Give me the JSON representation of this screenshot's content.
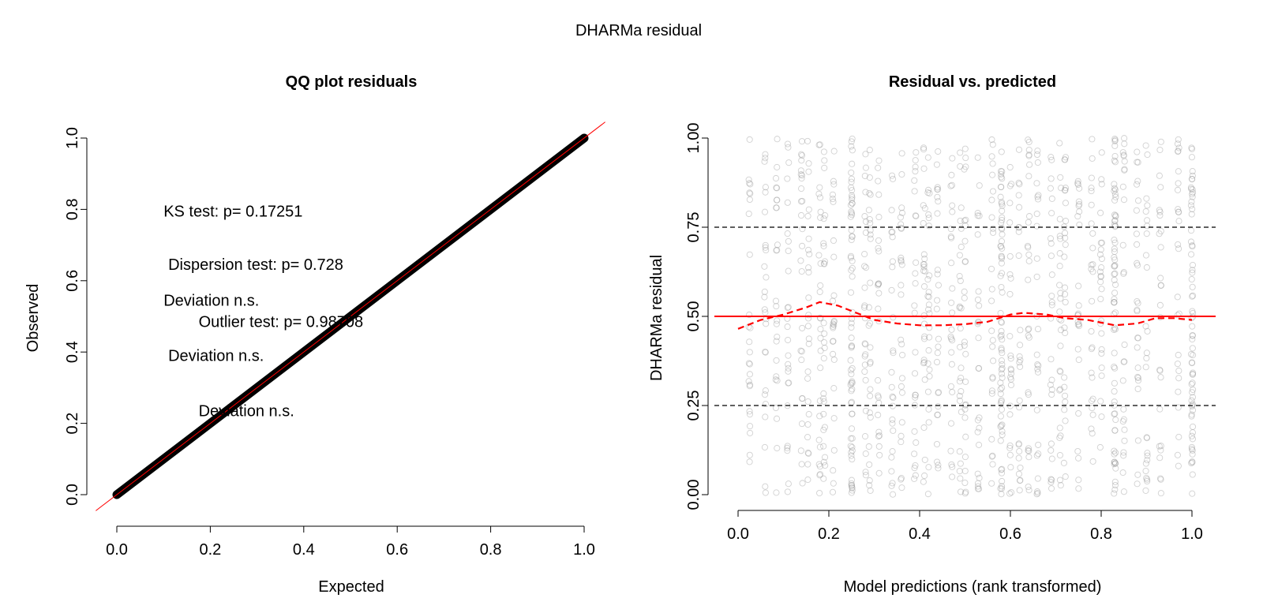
{
  "figure": {
    "title": "DHARMa residual"
  },
  "chart_data": [
    {
      "type": "scatter",
      "title": "QQ plot residuals",
      "xlabel": "Expected",
      "ylabel": "Observed",
      "xlim": [
        0,
        1
      ],
      "ylim": [
        0,
        1
      ],
      "xticks": [
        "0.0",
        "0.2",
        "0.4",
        "0.6",
        "0.8",
        "1.0"
      ],
      "yticks": [
        "0.0",
        "0.2",
        "0.4",
        "0.6",
        "0.8",
        "1.0"
      ],
      "series": [
        {
          "x": [
            0,
            1
          ],
          "y": [
            0,
            1
          ]
        }
      ],
      "reference_line": {
        "slope": 1,
        "intercept": 0,
        "color": "#ff0000"
      },
      "annotations": [
        {
          "text": "KS test: p= 0.17251",
          "x": 0.1,
          "y": 0.78
        },
        {
          "text": "Dispersion test: p= 0.728",
          "x": 0.11,
          "y": 0.63
        },
        {
          "text": "Deviation  n.s.",
          "x": 0.1,
          "y": 0.53
        },
        {
          "text": "Outlier test: p= 0.98708",
          "x": 0.175,
          "y": 0.47
        },
        {
          "text": "Deviation  n.s.",
          "x": 0.11,
          "y": 0.375
        },
        {
          "text": "Deviation  n.s.",
          "x": 0.175,
          "y": 0.22
        }
      ],
      "colors": {
        "points": "#000000",
        "line": "#ff0000"
      },
      "grid": false
    },
    {
      "type": "scatter",
      "title": "Residual vs. predicted",
      "xlabel": "Model predictions (rank transformed)",
      "ylabel": "DHARMa residual",
      "xlim": [
        0,
        1
      ],
      "ylim": [
        0,
        1
      ],
      "xticks": [
        "0.0",
        "0.2",
        "0.4",
        "0.6",
        "0.8",
        "1.0"
      ],
      "yticks": [
        "0.00",
        "0.25",
        "0.50",
        "0.75",
        "1.00"
      ],
      "x_columns": [
        0.025,
        0.06,
        0.085,
        0.11,
        0.14,
        0.155,
        0.18,
        0.19,
        0.21,
        0.25,
        0.28,
        0.29,
        0.31,
        0.34,
        0.36,
        0.39,
        0.41,
        0.42,
        0.44,
        0.47,
        0.49,
        0.5,
        0.53,
        0.56,
        0.58,
        0.6,
        0.62,
        0.64,
        0.66,
        0.69,
        0.71,
        0.72,
        0.75,
        0.78,
        0.8,
        0.83,
        0.85,
        0.88,
        0.9,
        0.93,
        0.97,
        1.0
      ],
      "reference_lines": [
        {
          "y": 0.25,
          "style": "dashed",
          "color": "#000000"
        },
        {
          "y": 0.5,
          "style": "solid",
          "color": "#ff0000"
        },
        {
          "y": 0.75,
          "style": "dashed",
          "color": "#000000"
        }
      ],
      "smooth_curve": {
        "x": [
          0.0,
          0.05,
          0.1,
          0.15,
          0.18,
          0.22,
          0.27,
          0.3,
          0.35,
          0.4,
          0.45,
          0.5,
          0.55,
          0.6,
          0.63,
          0.68,
          0.72,
          0.77,
          0.83,
          0.88,
          0.92,
          0.96,
          1.0
        ],
        "y": [
          0.465,
          0.49,
          0.505,
          0.525,
          0.54,
          0.53,
          0.505,
          0.49,
          0.48,
          0.475,
          0.475,
          0.478,
          0.485,
          0.505,
          0.51,
          0.505,
          0.495,
          0.49,
          0.475,
          0.48,
          0.495,
          0.495,
          0.49
        ],
        "style": "dashed",
        "color": "#ff0000"
      },
      "colors": {
        "points": "#9a9a9a"
      },
      "grid": false
    }
  ]
}
